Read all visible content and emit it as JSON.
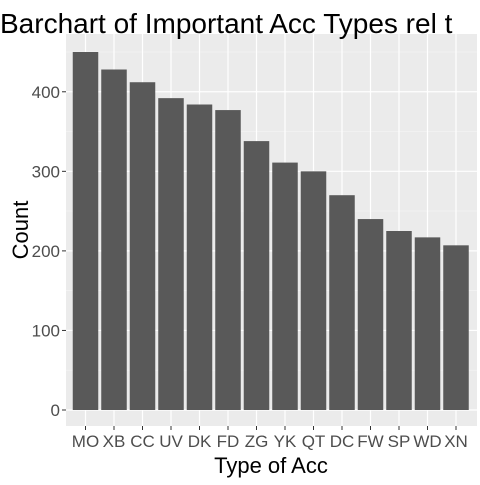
{
  "chart_data": {
    "type": "bar",
    "title": "Barchart of Important Acc Types rel t",
    "xlabel": "Type of Acc",
    "ylabel": "Count",
    "categories": [
      "MO",
      "XB",
      "CC",
      "UV",
      "DK",
      "FD",
      "ZG",
      "YK",
      "QT",
      "DC",
      "FW",
      "SP",
      "WD",
      "XN"
    ],
    "values": [
      450,
      428,
      412,
      392,
      384,
      377,
      338,
      311,
      300,
      270,
      240,
      225,
      217,
      207
    ],
    "ylim": [
      0,
      475
    ],
    "yticks": [
      0,
      100,
      200,
      300,
      400
    ],
    "ytick_labels": [
      "0",
      "100",
      "200",
      "300",
      "400"
    ],
    "grid": true,
    "legend": "none",
    "colors": {
      "bar": "#595959",
      "panel_background": "#ebebeb",
      "grid_major": "#ffffff",
      "grid_minor": "#f5f5f5",
      "text": "#000000",
      "tick_text": "#4d4d4d",
      "tick_mark": "#333333"
    }
  }
}
